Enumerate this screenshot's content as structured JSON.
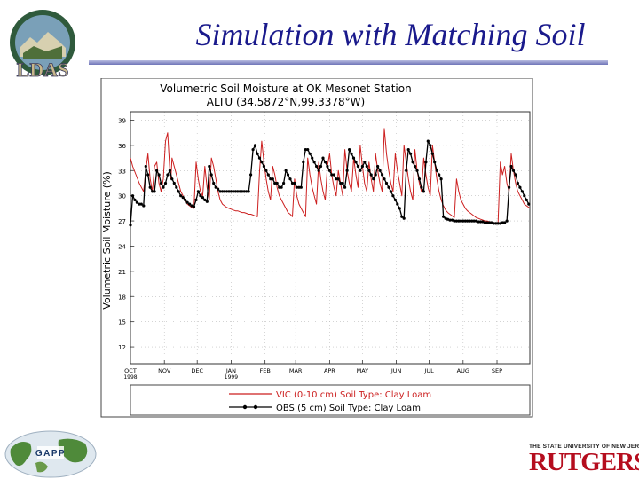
{
  "slide": {
    "title": "Simulation with Matching Soil"
  },
  "logos": {
    "left_top": "LDAS",
    "left_bottom": "GAPP",
    "rutgers_tagline": "THE STATE UNIVERSITY OF NEW JERSEY",
    "rutgers_name": "RUTGERS"
  },
  "colors": {
    "title": "#1a1a8c",
    "vic_series": "#cc1f1f",
    "obs_series": "#000000",
    "rutgers_red": "#b50d1e"
  },
  "chart_data": {
    "type": "line",
    "title": "Volumetric Soil Moisture at OK Mesonet Station",
    "subtitle": "ALTU (34.5872°N,99.3378°W)",
    "ylabel": "Volumetric Soil Moisture (%)",
    "xlabel": "",
    "ylim": [
      10,
      40
    ],
    "yticks": [
      "12",
      "15",
      "18",
      "21",
      "24",
      "27",
      "30",
      "33",
      "36",
      "39"
    ],
    "xrange_days": [
      0,
      365
    ],
    "xticks": [
      {
        "label": "OCT",
        "sub": "1998",
        "day": 0
      },
      {
        "label": "NOV",
        "sub": "",
        "day": 31
      },
      {
        "label": "DEC",
        "sub": "",
        "day": 61
      },
      {
        "label": "JAN",
        "sub": "1999",
        "day": 92
      },
      {
        "label": "FEB",
        "sub": "",
        "day": 123
      },
      {
        "label": "MAR",
        "sub": "",
        "day": 151
      },
      {
        "label": "APR",
        "sub": "",
        "day": 182
      },
      {
        "label": "MAY",
        "sub": "",
        "day": 212
      },
      {
        "label": "JUN",
        "sub": "",
        "day": 243
      },
      {
        "label": "JUL",
        "sub": "",
        "day": 273
      },
      {
        "label": "AUG",
        "sub": "",
        "day": 304
      },
      {
        "label": "SEP",
        "sub": "",
        "day": 335
      }
    ],
    "grid": true,
    "legend_position": "bottom",
    "series": [
      {
        "name": "VIC (0-10 cm) Soil Type: Clay Loam",
        "style": "line",
        "x": [
          0,
          2,
          5,
          8,
          10,
          12,
          14,
          16,
          18,
          20,
          22,
          24,
          26,
          28,
          30,
          32,
          34,
          36,
          37,
          38,
          40,
          42,
          44,
          46,
          48,
          50,
          52,
          54,
          56,
          58,
          60,
          62,
          64,
          66,
          68,
          70,
          72,
          74,
          76,
          78,
          80,
          82,
          84,
          86,
          88,
          90,
          92,
          94,
          96,
          98,
          100,
          102,
          104,
          106,
          108,
          110,
          112,
          114,
          116,
          118,
          120,
          122,
          124,
          126,
          128,
          130,
          132,
          134,
          136,
          138,
          140,
          142,
          144,
          146,
          148,
          150,
          152,
          154,
          156,
          158,
          160,
          162,
          164,
          166,
          168,
          170,
          172,
          174,
          176,
          178,
          180,
          182,
          184,
          186,
          188,
          190,
          192,
          194,
          196,
          198,
          200,
          202,
          204,
          206,
          208,
          210,
          212,
          214,
          216,
          218,
          220,
          222,
          224,
          226,
          228,
          230,
          232,
          234,
          236,
          238,
          240,
          242,
          244,
          246,
          248,
          250,
          252,
          254,
          256,
          258,
          260,
          262,
          264,
          266,
          268,
          270,
          272,
          274,
          276,
          278,
          280,
          282,
          284,
          286,
          288,
          290,
          292,
          294,
          296,
          298,
          300,
          302,
          304,
          306,
          308,
          310,
          312,
          314,
          316,
          318,
          320,
          322,
          324,
          326,
          328,
          330,
          332,
          334,
          336,
          338,
          340,
          342,
          344,
          346,
          348,
          350,
          352,
          354,
          356,
          358,
          360,
          362,
          364,
          365
        ],
        "values": [
          34.5,
          33.5,
          32.5,
          31.5,
          31.0,
          30.5,
          33.0,
          35.0,
          32.0,
          30.5,
          33.5,
          34.0,
          31.5,
          30.5,
          32.0,
          36.5,
          37.5,
          33.0,
          32.0,
          34.5,
          33.5,
          32.5,
          31.5,
          30.5,
          30.0,
          29.5,
          29.0,
          28.8,
          28.6,
          28.5,
          34.0,
          32.0,
          30.5,
          30.0,
          33.5,
          31.0,
          29.5,
          34.5,
          33.5,
          32.0,
          30.5,
          29.5,
          29.0,
          28.8,
          28.6,
          28.5,
          28.4,
          28.3,
          28.2,
          28.2,
          28.1,
          28.0,
          28.0,
          27.9,
          27.8,
          27.8,
          27.7,
          27.6,
          27.5,
          33.0,
          36.5,
          34.0,
          32.0,
          30.5,
          29.5,
          33.5,
          32.5,
          31.0,
          30.0,
          29.5,
          29.0,
          28.5,
          28.0,
          27.8,
          27.5,
          32.0,
          30.0,
          29.0,
          28.5,
          28.0,
          27.5,
          34.5,
          32.5,
          31.0,
          30.0,
          29.0,
          34.0,
          32.0,
          30.5,
          29.5,
          33.5,
          35.0,
          32.5,
          31.0,
          30.0,
          33.0,
          31.5,
          30.0,
          35.5,
          33.0,
          31.5,
          30.5,
          34.5,
          32.5,
          31.0,
          36.0,
          33.5,
          31.5,
          30.5,
          34.0,
          32.0,
          30.5,
          35.0,
          33.0,
          31.5,
          30.5,
          38.0,
          35.0,
          33.0,
          31.5,
          30.5,
          35.0,
          33.0,
          31.5,
          30.0,
          36.0,
          34.0,
          32.0,
          30.5,
          29.5,
          35.5,
          33.0,
          31.5,
          30.5,
          34.5,
          32.5,
          31.0,
          30.0,
          36.0,
          34.0,
          32.0,
          30.5,
          29.5,
          28.8,
          28.3,
          28.0,
          27.8,
          27.6,
          27.4,
          32.0,
          30.5,
          29.5,
          29.0,
          28.5,
          28.2,
          28.0,
          27.8,
          27.6,
          27.4,
          27.3,
          27.2,
          27.1,
          27.0,
          27.0,
          26.9,
          26.9,
          26.8,
          26.8,
          26.8,
          34.0,
          32.5,
          33.5,
          31.5,
          30.5,
          35.0,
          33.0,
          31.5,
          30.5,
          30.0,
          29.5,
          29.0,
          28.8,
          28.6,
          28.5
        ]
      },
      {
        "name": "OBS (5 cm) Soil Type: Clay Loam",
        "style": "line-marker",
        "x": [
          0,
          2,
          4,
          6,
          8,
          10,
          12,
          14,
          16,
          18,
          20,
          22,
          24,
          26,
          28,
          30,
          32,
          34,
          36,
          38,
          40,
          42,
          44,
          46,
          48,
          50,
          52,
          54,
          56,
          58,
          60,
          62,
          64,
          66,
          68,
          70,
          72,
          74,
          76,
          78,
          80,
          82,
          84,
          86,
          88,
          90,
          92,
          94,
          96,
          98,
          100,
          102,
          104,
          106,
          108,
          110,
          112,
          114,
          116,
          118,
          120,
          122,
          124,
          126,
          128,
          130,
          132,
          134,
          136,
          138,
          140,
          142,
          144,
          146,
          148,
          150,
          152,
          154,
          156,
          158,
          160,
          162,
          164,
          166,
          168,
          170,
          172,
          174,
          176,
          178,
          180,
          182,
          184,
          186,
          188,
          190,
          192,
          194,
          196,
          198,
          200,
          202,
          204,
          206,
          208,
          210,
          212,
          214,
          216,
          218,
          220,
          222,
          224,
          226,
          228,
          230,
          232,
          234,
          236,
          238,
          240,
          242,
          244,
          246,
          248,
          250,
          252,
          254,
          256,
          258,
          260,
          262,
          264,
          266,
          268,
          270,
          272,
          274,
          276,
          278,
          280,
          282,
          284,
          286,
          288,
          290,
          292,
          294,
          296,
          298,
          300,
          302,
          304,
          306,
          308,
          310,
          312,
          314,
          316,
          318,
          320,
          322,
          324,
          326,
          328,
          330,
          332,
          334,
          336,
          338,
          340,
          342,
          344,
          346,
          348,
          350,
          352,
          354,
          356,
          358,
          360,
          362,
          364
        ],
        "values": [
          26.5,
          30.0,
          29.5,
          29.2,
          29.0,
          29.0,
          28.8,
          33.5,
          32.5,
          31.0,
          30.5,
          30.5,
          33.0,
          32.5,
          31.5,
          31.0,
          31.5,
          32.5,
          33.0,
          32.0,
          31.5,
          31.0,
          30.5,
          30.0,
          29.8,
          29.5,
          29.2,
          29.0,
          28.8,
          28.7,
          29.5,
          30.5,
          30.0,
          29.8,
          29.5,
          29.3,
          33.5,
          32.5,
          31.5,
          31.0,
          30.8,
          30.5,
          30.5,
          30.5,
          30.5,
          30.5,
          30.5,
          30.5,
          30.5,
          30.5,
          30.5,
          30.5,
          30.5,
          30.5,
          30.5,
          32.5,
          35.5,
          36.0,
          35.0,
          34.5,
          34.0,
          33.5,
          33.0,
          32.5,
          32.0,
          32.0,
          31.5,
          31.5,
          31.0,
          31.0,
          31.5,
          33.0,
          32.5,
          32.0,
          31.5,
          31.5,
          31.0,
          31.0,
          31.0,
          34.0,
          35.5,
          35.5,
          35.0,
          34.5,
          34.0,
          33.5,
          33.0,
          33.5,
          34.5,
          34.0,
          33.5,
          33.0,
          32.5,
          32.5,
          32.0,
          32.0,
          31.5,
          31.5,
          31.0,
          33.0,
          35.5,
          35.0,
          34.5,
          34.0,
          33.5,
          33.0,
          33.5,
          34.0,
          33.5,
          33.0,
          32.5,
          32.0,
          32.5,
          33.5,
          33.0,
          32.5,
          32.0,
          31.5,
          31.0,
          30.5,
          30.0,
          29.5,
          29.0,
          28.5,
          27.5,
          27.3,
          33.0,
          35.5,
          35.0,
          34.0,
          33.5,
          33.0,
          32.0,
          31.0,
          30.5,
          34.0,
          36.5,
          36.0,
          35.0,
          34.0,
          33.0,
          32.5,
          32.0,
          27.5,
          27.3,
          27.2,
          27.1,
          27.1,
          27.0,
          27.0,
          27.0,
          27.0,
          27.0,
          27.0,
          27.0,
          27.0,
          27.0,
          27.0,
          27.0,
          26.9,
          26.9,
          26.9,
          26.8,
          26.8,
          26.8,
          26.8,
          26.7,
          26.7,
          26.7,
          26.7,
          26.8,
          26.8,
          27.0,
          31.0,
          33.5,
          33.0,
          32.5,
          31.5,
          31.0,
          30.5,
          30.0,
          29.5,
          29.0
        ]
      }
    ]
  }
}
